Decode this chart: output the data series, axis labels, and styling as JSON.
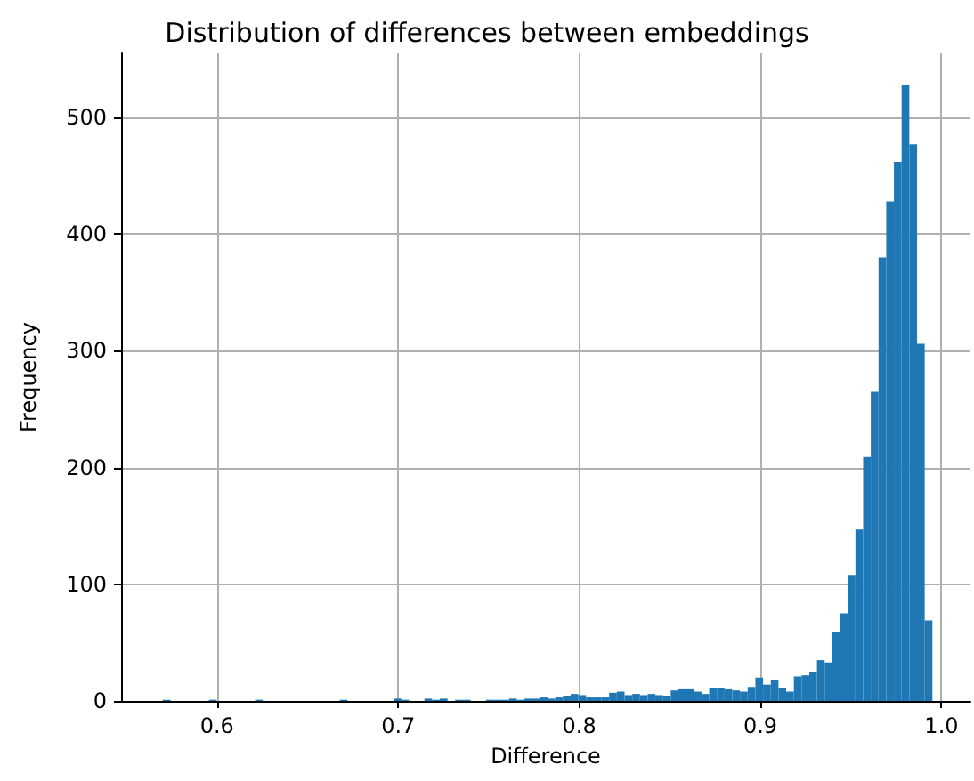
{
  "chart_data": {
    "type": "histogram",
    "title": "Distribution of differences between embeddings",
    "xlabel": "Difference",
    "ylabel": "Frequency",
    "color": "#1f77b4",
    "bins": [
      0.57,
      0.57425,
      0.5785,
      0.58275,
      0.587,
      0.59125,
      0.5955,
      0.59975,
      0.604,
      0.60825,
      0.6125,
      0.61675,
      0.621,
      0.62525,
      0.6295,
      0.63375,
      0.638,
      0.64225,
      0.6465,
      0.65075,
      0.655,
      0.65925,
      0.6635,
      0.66775,
      0.672,
      0.67625,
      0.6805,
      0.68475,
      0.689,
      0.69325,
      0.6975,
      0.70175,
      0.706,
      0.71025,
      0.7145,
      0.71875,
      0.723,
      0.72725,
      0.7315,
      0.73575,
      0.74,
      0.74425,
      0.7485,
      0.75275,
      0.757,
      0.76125,
      0.7655,
      0.76975,
      0.774,
      0.77825,
      0.7825,
      0.78675,
      0.791,
      0.79525,
      0.7995,
      0.80375,
      0.808,
      0.81225,
      0.8165,
      0.82075,
      0.825,
      0.82925,
      0.8335,
      0.83775,
      0.842,
      0.84625,
      0.8505,
      0.85475,
      0.859,
      0.86325,
      0.8675,
      0.87175,
      0.876,
      0.88025,
      0.8845,
      0.88875,
      0.893,
      0.89725,
      0.9015,
      0.90575,
      0.91,
      0.91425,
      0.9185,
      0.92275,
      0.927,
      0.93125,
      0.9355,
      0.93975,
      0.944,
      0.94825,
      0.9525,
      0.95675,
      0.961,
      0.96525,
      0.9695,
      0.97375,
      0.978,
      0.98225,
      0.9865,
      0.99075,
      0.995
    ],
    "values": [
      1,
      0,
      0,
      0,
      0,
      0,
      1,
      0,
      0,
      0,
      0,
      0,
      1,
      0,
      0,
      0,
      0,
      0,
      0,
      0,
      0,
      0,
      0,
      1,
      0,
      0,
      0,
      0,
      0,
      0,
      2,
      1,
      0,
      0,
      2,
      1,
      2,
      0,
      1,
      1,
      0,
      0,
      1,
      1,
      1,
      2,
      1,
      2,
      2,
      3,
      2,
      3,
      4,
      6,
      5,
      3,
      3,
      3,
      7,
      8,
      5,
      6,
      5,
      6,
      5,
      4,
      9,
      10,
      10,
      8,
      6,
      11,
      11,
      10,
      9,
      8,
      12,
      20,
      14,
      18,
      11,
      8,
      21,
      22,
      25,
      35,
      33,
      59,
      75,
      108,
      147,
      209,
      265,
      380,
      428,
      462,
      528,
      477,
      306,
      69
    ],
    "xlim": [
      0.547,
      1.016
    ],
    "xticks": [
      0.6,
      0.7,
      0.8,
      0.9,
      {
        "value": 1,
        "label": "1.0"
      }
    ],
    "ylim": [
      0,
      555
    ],
    "yticks": [
      0,
      100,
      200,
      300,
      400,
      500
    ],
    "grid": true
  }
}
